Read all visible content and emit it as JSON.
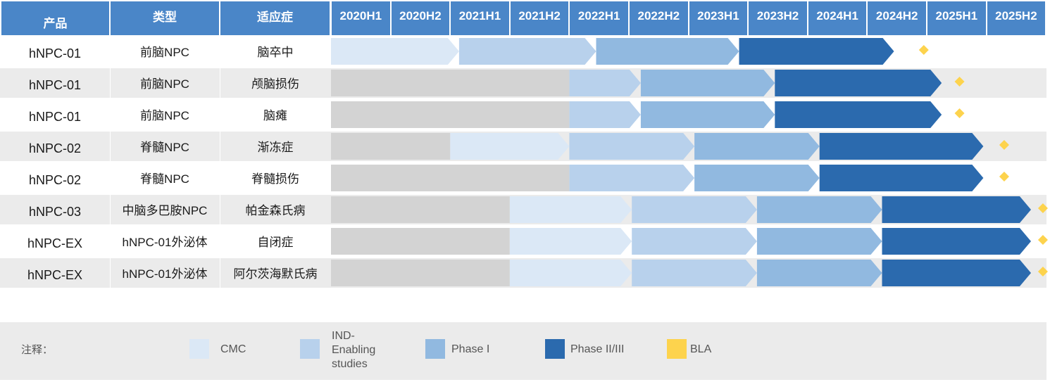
{
  "headers": {
    "product": "产品",
    "type": "类型",
    "indication": "适应症"
  },
  "chart_data": {
    "type": "table",
    "periods": [
      "2020H1",
      "2020H2",
      "2021H1",
      "2021H2",
      "2022H1",
      "2022H2",
      "2023H1",
      "2023H2",
      "2024H1",
      "2024H2",
      "2025H1",
      "2025H2"
    ],
    "stages": [
      {
        "key": "pre",
        "color": "#d3d3d3"
      },
      {
        "key": "CMC",
        "label": "CMC",
        "color": "#dbe8f6"
      },
      {
        "key": "IND",
        "label": "IND-\nEnabling\nstudies",
        "color": "#b8d1ec"
      },
      {
        "key": "P1",
        "label": "Phase I",
        "color": "#91b9e0"
      },
      {
        "key": "P23",
        "label": "Phase II/III",
        "color": "#2b6aae"
      },
      {
        "key": "BLA",
        "label": "BLA",
        "color": "#fdd34d"
      }
    ],
    "rows": [
      {
        "product": "hNPC-01",
        "type": "前脑NPC",
        "indication": "脑卒中",
        "segments": [
          [
            "CMC",
            0,
            2.15
          ],
          [
            "IND",
            2.15,
            4.45
          ],
          [
            "P1",
            4.45,
            6.85
          ],
          [
            "P23",
            6.85,
            9.45
          ]
        ],
        "bla": 9.95
      },
      {
        "product": "hNPC-01",
        "type": "前脑NPC",
        "indication": "颅脑损伤",
        "segments": [
          [
            "pre",
            0,
            4.0
          ],
          [
            "IND",
            4.0,
            5.2
          ],
          [
            "P1",
            5.2,
            7.45
          ],
          [
            "P23",
            7.45,
            10.25
          ]
        ],
        "bla": 10.55
      },
      {
        "product": "hNPC-01",
        "type": "前脑NPC",
        "indication": "脑瘫",
        "segments": [
          [
            "pre",
            0,
            4.0
          ],
          [
            "IND",
            4.0,
            5.2
          ],
          [
            "P1",
            5.2,
            7.45
          ],
          [
            "P23",
            7.45,
            10.25
          ]
        ],
        "bla": 10.55
      },
      {
        "product": "hNPC-02",
        "type": "脊髓NPC",
        "indication": "渐冻症",
        "segments": [
          [
            "pre",
            0,
            2.0
          ],
          [
            "CMC",
            2.0,
            4.0
          ],
          [
            "IND",
            4.0,
            6.1
          ],
          [
            "P1",
            6.1,
            8.2
          ],
          [
            "P23",
            8.2,
            10.95
          ]
        ],
        "bla": 11.3
      },
      {
        "product": "hNPC-02",
        "type": "脊髓NPC",
        "indication": "脊髓损伤",
        "segments": [
          [
            "pre",
            0,
            4.0
          ],
          [
            "IND",
            4.0,
            6.1
          ],
          [
            "P1",
            6.1,
            8.2
          ],
          [
            "P23",
            8.2,
            10.95
          ]
        ],
        "bla": 11.3
      },
      {
        "product": "hNPC-03",
        "type": "中脑多巴胺NPC",
        "indication": "帕金森氏病",
        "segments": [
          [
            "pre",
            0,
            3.0
          ],
          [
            "CMC",
            3.0,
            5.05
          ],
          [
            "IND",
            5.05,
            7.15
          ],
          [
            "P1",
            7.15,
            9.25
          ],
          [
            "P23",
            9.25,
            11.75
          ]
        ],
        "bla": 11.95
      },
      {
        "product": "hNPC-EX",
        "type": "hNPC-01外泌体",
        "indication": "自闭症",
        "segments": [
          [
            "pre",
            0,
            3.0
          ],
          [
            "CMC",
            3.0,
            5.05
          ],
          [
            "IND",
            5.05,
            7.15
          ],
          [
            "P1",
            7.15,
            9.25
          ],
          [
            "P23",
            9.25,
            11.75
          ]
        ],
        "bla": 11.95
      },
      {
        "product": "hNPC-EX",
        "type": "hNPC-01外泌体",
        "indication": "阿尔茨海默氏病",
        "segments": [
          [
            "pre",
            0,
            3.0
          ],
          [
            "CMC",
            3.0,
            5.05
          ],
          [
            "IND",
            5.05,
            7.15
          ],
          [
            "P1",
            7.15,
            9.25
          ],
          [
            "P23",
            9.25,
            11.75
          ]
        ],
        "bla": 11.95
      }
    ]
  },
  "legend": {
    "title": "注释：",
    "items": [
      {
        "label": "CMC",
        "color": "#dbe8f6"
      },
      {
        "label": "IND-\nEnabling\nstudies",
        "color": "#b8d1ec"
      },
      {
        "label": "Phase I",
        "color": "#91b9e0"
      },
      {
        "label": "Phase II/III",
        "color": "#2b6aae"
      },
      {
        "label": "BLA",
        "color": "#fdd34d"
      }
    ]
  }
}
